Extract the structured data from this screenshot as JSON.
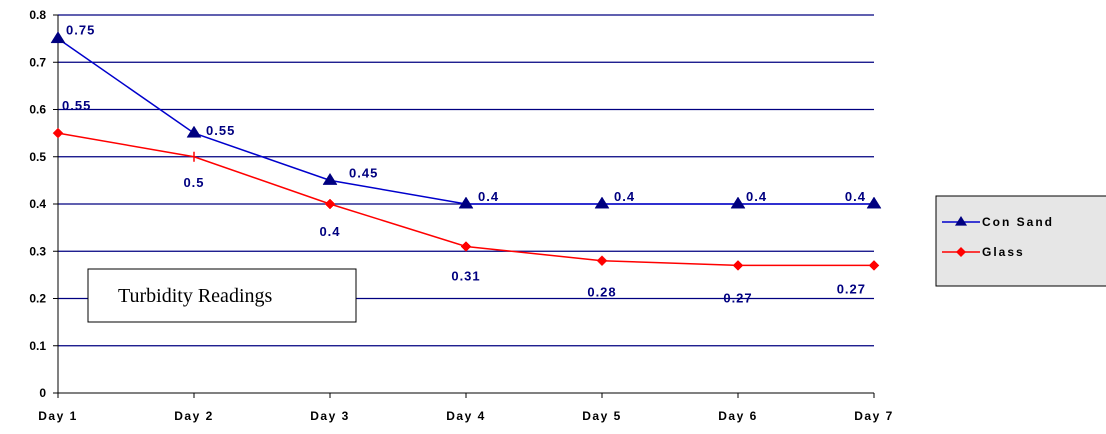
{
  "chart_data": {
    "type": "line",
    "title": "Turbidity Readings",
    "categories": [
      "Day 1",
      "Day 2",
      "Day 3",
      "Day 4",
      "Day 5",
      "Day 6",
      "Day 7"
    ],
    "series": [
      {
        "name": "Con Sand",
        "values": [
          0.75,
          0.55,
          0.45,
          0.4,
          0.4,
          0.4,
          0.4
        ],
        "labels": [
          "0.75",
          "0.55",
          "0.45",
          "0.4",
          "0.4",
          "0.4",
          "0.4"
        ],
        "color": "#0000CC",
        "marker": "triangle"
      },
      {
        "name": "Glass",
        "values": [
          0.55,
          0.5,
          0.4,
          0.31,
          0.28,
          0.27,
          0.27
        ],
        "labels": [
          "0.55",
          "0.5",
          "0.4",
          "0.31",
          "0.28",
          "0.27",
          "0.27"
        ],
        "color": "#FF0000",
        "marker": "diamond"
      }
    ],
    "ylim": [
      0,
      0.8
    ],
    "yticks": [
      "0",
      "0.1",
      "0.2",
      "0.3",
      "0.4",
      "0.5",
      "0.6",
      "0.7",
      "0.8"
    ],
    "grid": "horizontal",
    "legend": "right"
  }
}
